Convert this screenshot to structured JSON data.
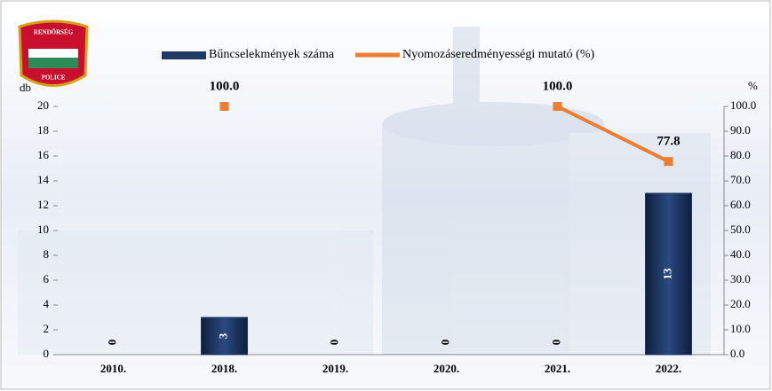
{
  "logo": {
    "top": "RENDŐRSÉG",
    "bottom": "POLICE"
  },
  "chart_data": {
    "type": "combo",
    "categories": [
      "2010.",
      "2018.",
      "2019.",
      "2020.",
      "2021.",
      "2022."
    ],
    "series": [
      {
        "name": "Bűncselekmények száma",
        "type": "bar",
        "color": "#1f3864",
        "values": [
          0,
          3,
          0,
          0,
          0,
          13
        ]
      },
      {
        "name": "Nyomozáseredményességi mutató (%)",
        "type": "line",
        "axis": "y2",
        "color": "#ed7d31",
        "values": [
          null,
          100.0,
          null,
          null,
          100.0,
          77.8
        ],
        "value_labels": [
          null,
          "100.0",
          null,
          null,
          "100.0",
          "77.8"
        ]
      }
    ],
    "ylabel": "db",
    "y2label": "%",
    "ylim": [
      0,
      20
    ],
    "yticks": [
      0,
      2,
      4,
      6,
      8,
      10,
      12,
      14,
      16,
      18,
      20
    ],
    "y2lim": [
      0,
      100
    ],
    "y2ticks": [
      {
        "value": 0,
        "label": "0.0"
      },
      {
        "value": 10,
        "label": "10.0"
      },
      {
        "value": 20,
        "label": "20.0"
      },
      {
        "value": 30,
        "label": "30.0"
      },
      {
        "value": 40,
        "label": "40.0"
      },
      {
        "value": 50,
        "label": "50.0"
      },
      {
        "value": 60,
        "label": "60.0"
      },
      {
        "value": 70,
        "label": "70.0"
      },
      {
        "value": 80,
        "label": "80.0"
      },
      {
        "value": 90,
        "label": "90.0"
      },
      {
        "value": 100,
        "label": "100.0"
      }
    ]
  }
}
